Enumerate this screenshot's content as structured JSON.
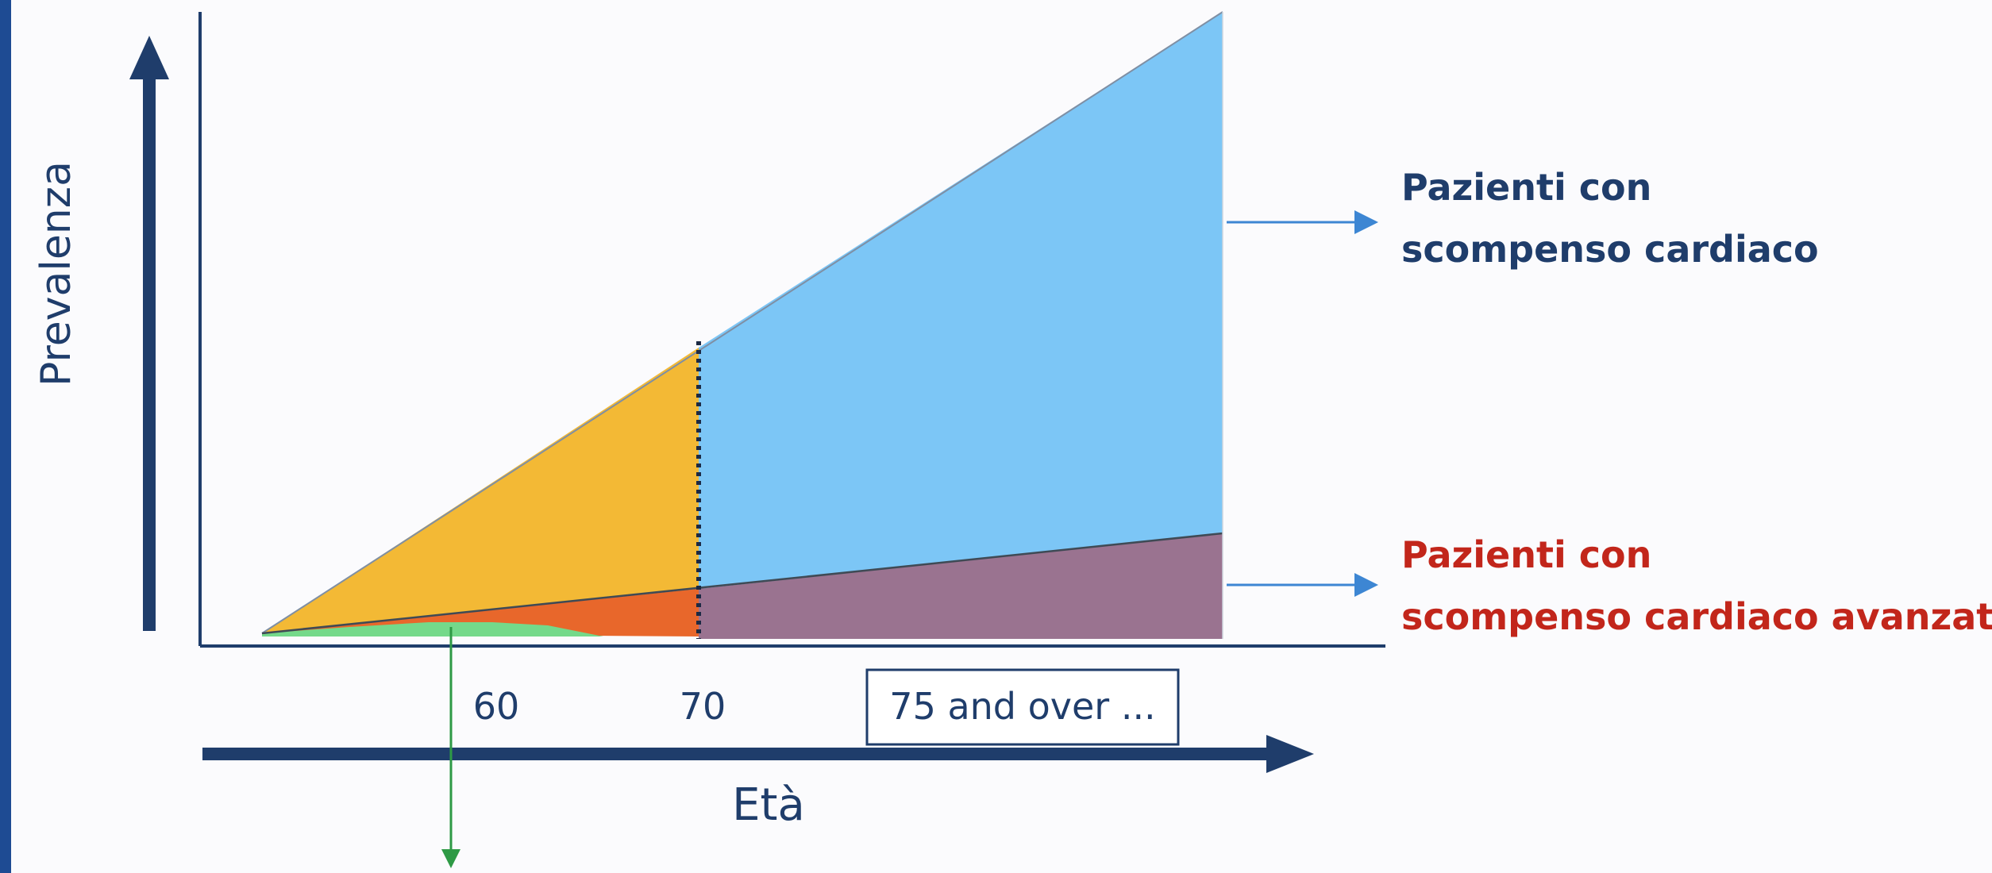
{
  "y_axis_label": "Prevalenza",
  "x_axis_label": "Età",
  "ticks": [
    "60",
    "70"
  ],
  "box_label": "75 and over ...",
  "annotations": {
    "heart_failure": [
      "Pazienti con",
      "scompenso cardiaco"
    ],
    "advanced_heart_failure": [
      "Pazienti con",
      "scompenso cardiaco avanzato"
    ]
  },
  "colors": {
    "axis": "#1f3d6b",
    "heart_failure_under_70": "#f3b935",
    "heart_failure_70_plus": "#7cc6f6",
    "advanced_under_70": "#e8672b",
    "advanced_70_plus": "#9a7390",
    "early_region": "#74d98a",
    "annotation_blue": "#1f3d6b",
    "annotation_red": "#c2261b",
    "arrow_blue": "#3d86d3",
    "arrow_green": "#2e9a45"
  }
}
